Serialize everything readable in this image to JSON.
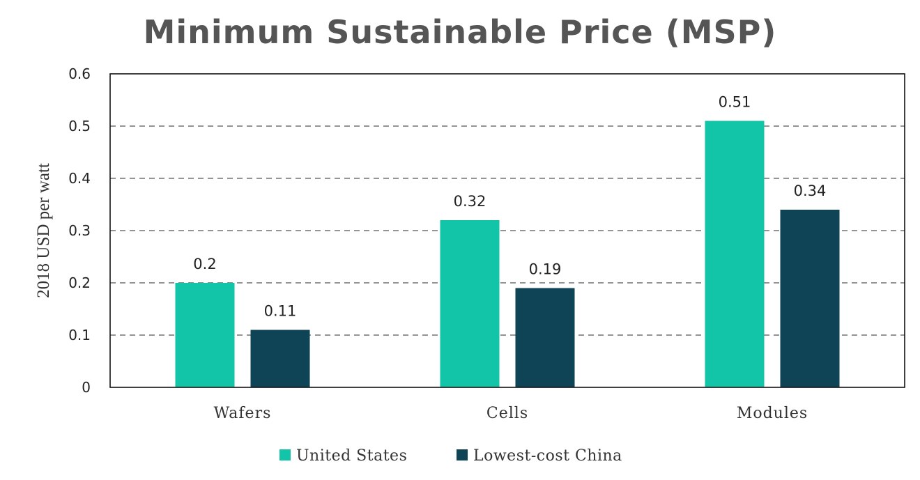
{
  "chart_data": {
    "type": "bar",
    "title": "Minimum Sustainable Price (MSP)",
    "xlabel": "",
    "ylabel": "2018 USD per watt",
    "categories": [
      "Wafers",
      "Cells",
      "Modules"
    ],
    "series": [
      {
        "name": "United States",
        "values": [
          0.2,
          0.32,
          0.51
        ],
        "color": "#12C5A9"
      },
      {
        "name": "Lowest-cost China",
        "values": [
          0.11,
          0.19,
          0.34
        ],
        "color": "#0F4457"
      }
    ],
    "data_labels": [
      [
        "0.2",
        "0.32",
        "0.51"
      ],
      [
        "0.11",
        "0.19",
        "0.34"
      ]
    ],
    "ylim": [
      0,
      0.6
    ],
    "yticks": [
      0,
      0.1,
      0.2,
      0.3,
      0.4,
      0.5,
      0.6
    ],
    "ytick_labels": [
      "0",
      "0.1",
      "0.2",
      "0.3",
      "0.4",
      "0.5",
      "0.6"
    ],
    "grid": true,
    "legend": "bottom-center"
  }
}
